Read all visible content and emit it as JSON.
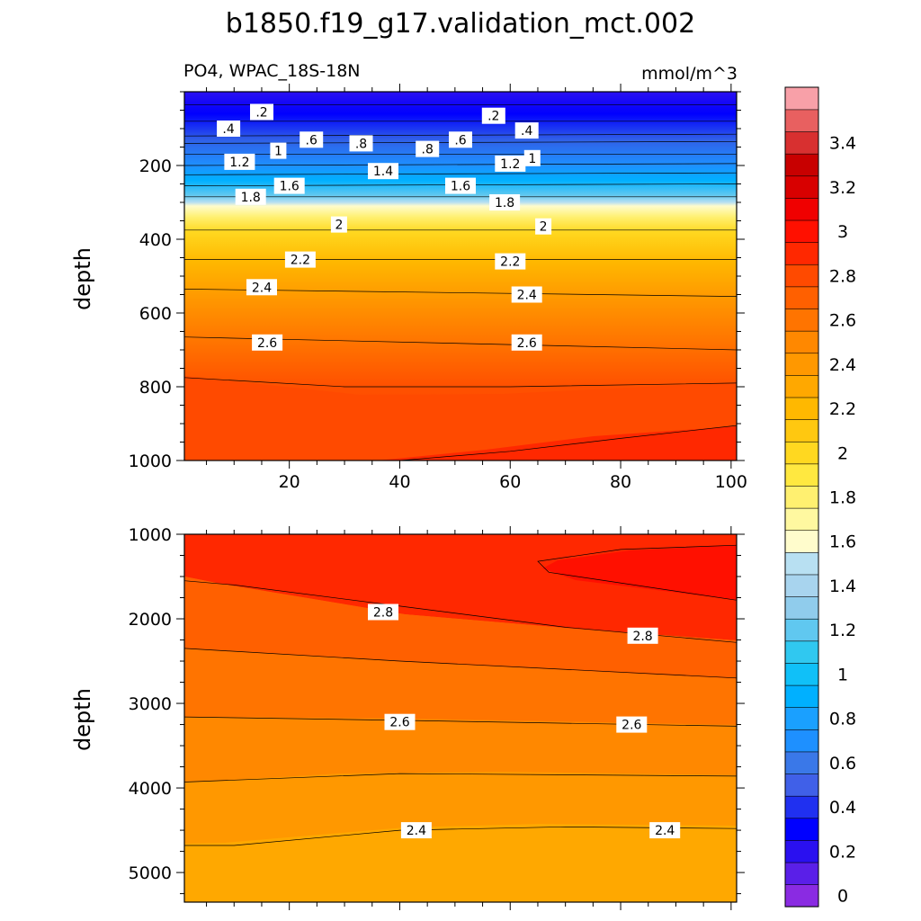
{
  "title": "b1850.f19_g17.validation_mct.002",
  "chart_data": [
    {
      "type": "heatmap",
      "panel": "upper",
      "left_label": "PO4, WPAC_18S-18N",
      "right_label": "mmol/m^3",
      "ylabel": "depth",
      "xlabel": "",
      "xlim": [
        1,
        101
      ],
      "ylim": [
        1000,
        0
      ],
      "x_ticks": [
        20,
        40,
        60,
        80,
        100
      ],
      "y_ticks": [
        200,
        400,
        600,
        800,
        1000
      ],
      "contours": [
        {
          "level": 0.2,
          "label": ".2",
          "depth_at_x": [
            [
              1,
              35
            ],
            [
              101,
              35
            ]
          ]
        },
        {
          "level": 0.4,
          "label": ".4",
          "depth_at_x": [
            [
              1,
              80
            ],
            [
              101,
              80
            ]
          ]
        },
        {
          "level": 0.6,
          "label": ".6",
          "depth_at_x": [
            [
              1,
              120
            ],
            [
              101,
              115
            ]
          ]
        },
        {
          "level": 0.8,
          "label": ".8",
          "depth_at_x": [
            [
              1,
              140
            ],
            [
              101,
              135
            ]
          ]
        },
        {
          "level": 1.0,
          "label": "1",
          "depth_at_x": [
            [
              1,
              170
            ],
            [
              101,
              170
            ]
          ]
        },
        {
          "level": 1.2,
          "label": "1.2",
          "depth_at_x": [
            [
              1,
              200
            ],
            [
              101,
              195
            ]
          ]
        },
        {
          "level": 1.4,
          "label": "1.4",
          "depth_at_x": [
            [
              1,
              225
            ],
            [
              101,
              220
            ]
          ]
        },
        {
          "level": 1.6,
          "label": "1.6",
          "depth_at_x": [
            [
              1,
              255
            ],
            [
              101,
              250
            ]
          ]
        },
        {
          "level": 1.8,
          "label": "1.8",
          "depth_at_x": [
            [
              1,
              285
            ],
            [
              101,
              285
            ]
          ]
        },
        {
          "level": 2.0,
          "label": "2",
          "depth_at_x": [
            [
              1,
              375
            ],
            [
              101,
              375
            ]
          ]
        },
        {
          "level": 2.2,
          "label": "2.2",
          "depth_at_x": [
            [
              1,
              455
            ],
            [
              101,
              455
            ]
          ]
        },
        {
          "level": 2.4,
          "label": "2.4",
          "depth_at_x": [
            [
              1,
              535
            ],
            [
              101,
              555
            ]
          ]
        },
        {
          "level": 2.6,
          "label": "2.6",
          "depth_at_x": [
            [
              1,
              665
            ],
            [
              101,
              700
            ]
          ]
        },
        {
          "level": 2.8,
          "label": "",
          "depth_at_x": [
            [
              1,
              775
            ],
            [
              30,
              800
            ],
            [
              60,
              800
            ],
            [
              101,
              790
            ]
          ]
        },
        {
          "level": 3.0,
          "label": "",
          "depth_at_x": [
            [
              40,
              1000
            ],
            [
              60,
              975
            ],
            [
              80,
              940
            ],
            [
              101,
              905
            ]
          ]
        }
      ],
      "contour_labels": [
        {
          "text": ".2",
          "x": 15,
          "depth": 55
        },
        {
          "text": ".2",
          "x": 57,
          "depth": 65
        },
        {
          "text": ".4",
          "x": 9,
          "depth": 100
        },
        {
          "text": ".4",
          "x": 63,
          "depth": 105
        },
        {
          "text": ".6",
          "x": 24,
          "depth": 130
        },
        {
          "text": ".6",
          "x": 51,
          "depth": 130
        },
        {
          "text": ".8",
          "x": 33,
          "depth": 140
        },
        {
          "text": ".8",
          "x": 45,
          "depth": 155
        },
        {
          "text": "1",
          "x": 18,
          "depth": 160
        },
        {
          "text": "1",
          "x": 64,
          "depth": 180
        },
        {
          "text": "1.2",
          "x": 11,
          "depth": 190
        },
        {
          "text": "1.2",
          "x": 60,
          "depth": 195
        },
        {
          "text": "1.4",
          "x": 37,
          "depth": 215
        },
        {
          "text": "1.6",
          "x": 20,
          "depth": 255
        },
        {
          "text": "1.6",
          "x": 51,
          "depth": 255
        },
        {
          "text": "1.8",
          "x": 13,
          "depth": 285
        },
        {
          "text": "1.8",
          "x": 59,
          "depth": 300
        },
        {
          "text": "2",
          "x": 29,
          "depth": 360
        },
        {
          "text": "2",
          "x": 66,
          "depth": 365
        },
        {
          "text": "2.2",
          "x": 22,
          "depth": 455
        },
        {
          "text": "2.2",
          "x": 60,
          "depth": 460
        },
        {
          "text": "2.4",
          "x": 15,
          "depth": 530
        },
        {
          "text": "2.4",
          "x": 63,
          "depth": 550
        },
        {
          "text": "2.6",
          "x": 16,
          "depth": 680
        },
        {
          "text": "2.6",
          "x": 63,
          "depth": 680
        }
      ]
    },
    {
      "type": "heatmap",
      "panel": "lower",
      "ylabel": "depth",
      "xlabel": "",
      "xlim": [
        1,
        101
      ],
      "ylim": [
        5350,
        1000
      ],
      "y_ticks": [
        1000,
        2000,
        3000,
        4000,
        5000
      ],
      "contours": [
        {
          "level": 3.0,
          "label": "",
          "closed_region": [
            [
              101,
              1130
            ],
            [
              80,
              1180
            ],
            [
              65,
              1320
            ],
            [
              67,
              1450
            ],
            [
              101,
              1780
            ]
          ]
        },
        {
          "level": 2.8,
          "label": "2.8",
          "depth_at_x": [
            [
              1,
              1550
            ],
            [
              10,
              1600
            ],
            [
              40,
              1850
            ],
            [
              70,
              2100
            ],
            [
              101,
              2280
            ]
          ]
        },
        {
          "level": 2.7,
          "label": "",
          "depth_at_x": [
            [
              1,
              2350
            ],
            [
              40,
              2500
            ],
            [
              101,
              2700
            ]
          ]
        },
        {
          "level": 2.6,
          "label": "2.6",
          "depth_at_x": [
            [
              1,
              3160
            ],
            [
              40,
              3200
            ],
            [
              101,
              3270
            ]
          ]
        },
        {
          "level": 2.5,
          "label": "",
          "depth_at_x": [
            [
              1,
              3930
            ],
            [
              40,
              3830
            ],
            [
              101,
              3860
            ]
          ]
        },
        {
          "level": 2.4,
          "label": "2.4",
          "depth_at_x": [
            [
              1,
              4680
            ],
            [
              10,
              4680
            ],
            [
              40,
              4500
            ],
            [
              70,
              4460
            ],
            [
              101,
              4480
            ]
          ]
        }
      ],
      "contour_labels": [
        {
          "text": "2.8",
          "x": 37,
          "depth": 1920
        },
        {
          "text": "2.8",
          "x": 84,
          "depth": 2200
        },
        {
          "text": "2.6",
          "x": 40,
          "depth": 3220
        },
        {
          "text": "2.6",
          "x": 82,
          "depth": 3250
        },
        {
          "text": "2.4",
          "x": 43,
          "depth": 4500
        },
        {
          "text": "2.4",
          "x": 88,
          "depth": 4500
        }
      ]
    }
  ],
  "colorbar": {
    "labels": [
      "0",
      "0.2",
      "0.4",
      "0.6",
      "0.8",
      "1",
      "1.2",
      "1.4",
      "1.6",
      "1.8",
      "2",
      "2.2",
      "2.4",
      "2.6",
      "2.8",
      "3",
      "3.2",
      "3.4"
    ],
    "colors": [
      "#8a2be2",
      "#5a1fe8",
      "#2a10f0",
      "#0000ff",
      "#2030f0",
      "#4060e8",
      "#3a78e8",
      "#1e90ff",
      "#1aa0ff",
      "#00b0ff",
      "#10c0f8",
      "#30c8f0",
      "#60c8f0",
      "#90ccec",
      "#a8d4ee",
      "#b8e0f2",
      "#fffccc",
      "#fff8a0",
      "#fff070",
      "#ffe840",
      "#ffd820",
      "#ffc810",
      "#ffb800",
      "#ffa800",
      "#ff9800",
      "#ff8800",
      "#ff7400",
      "#ff6000",
      "#ff4a00",
      "#ff2800",
      "#ff1000",
      "#f00000",
      "#d80000",
      "#c80000",
      "#d83030",
      "#e86060",
      "#f8a0a8"
    ]
  }
}
